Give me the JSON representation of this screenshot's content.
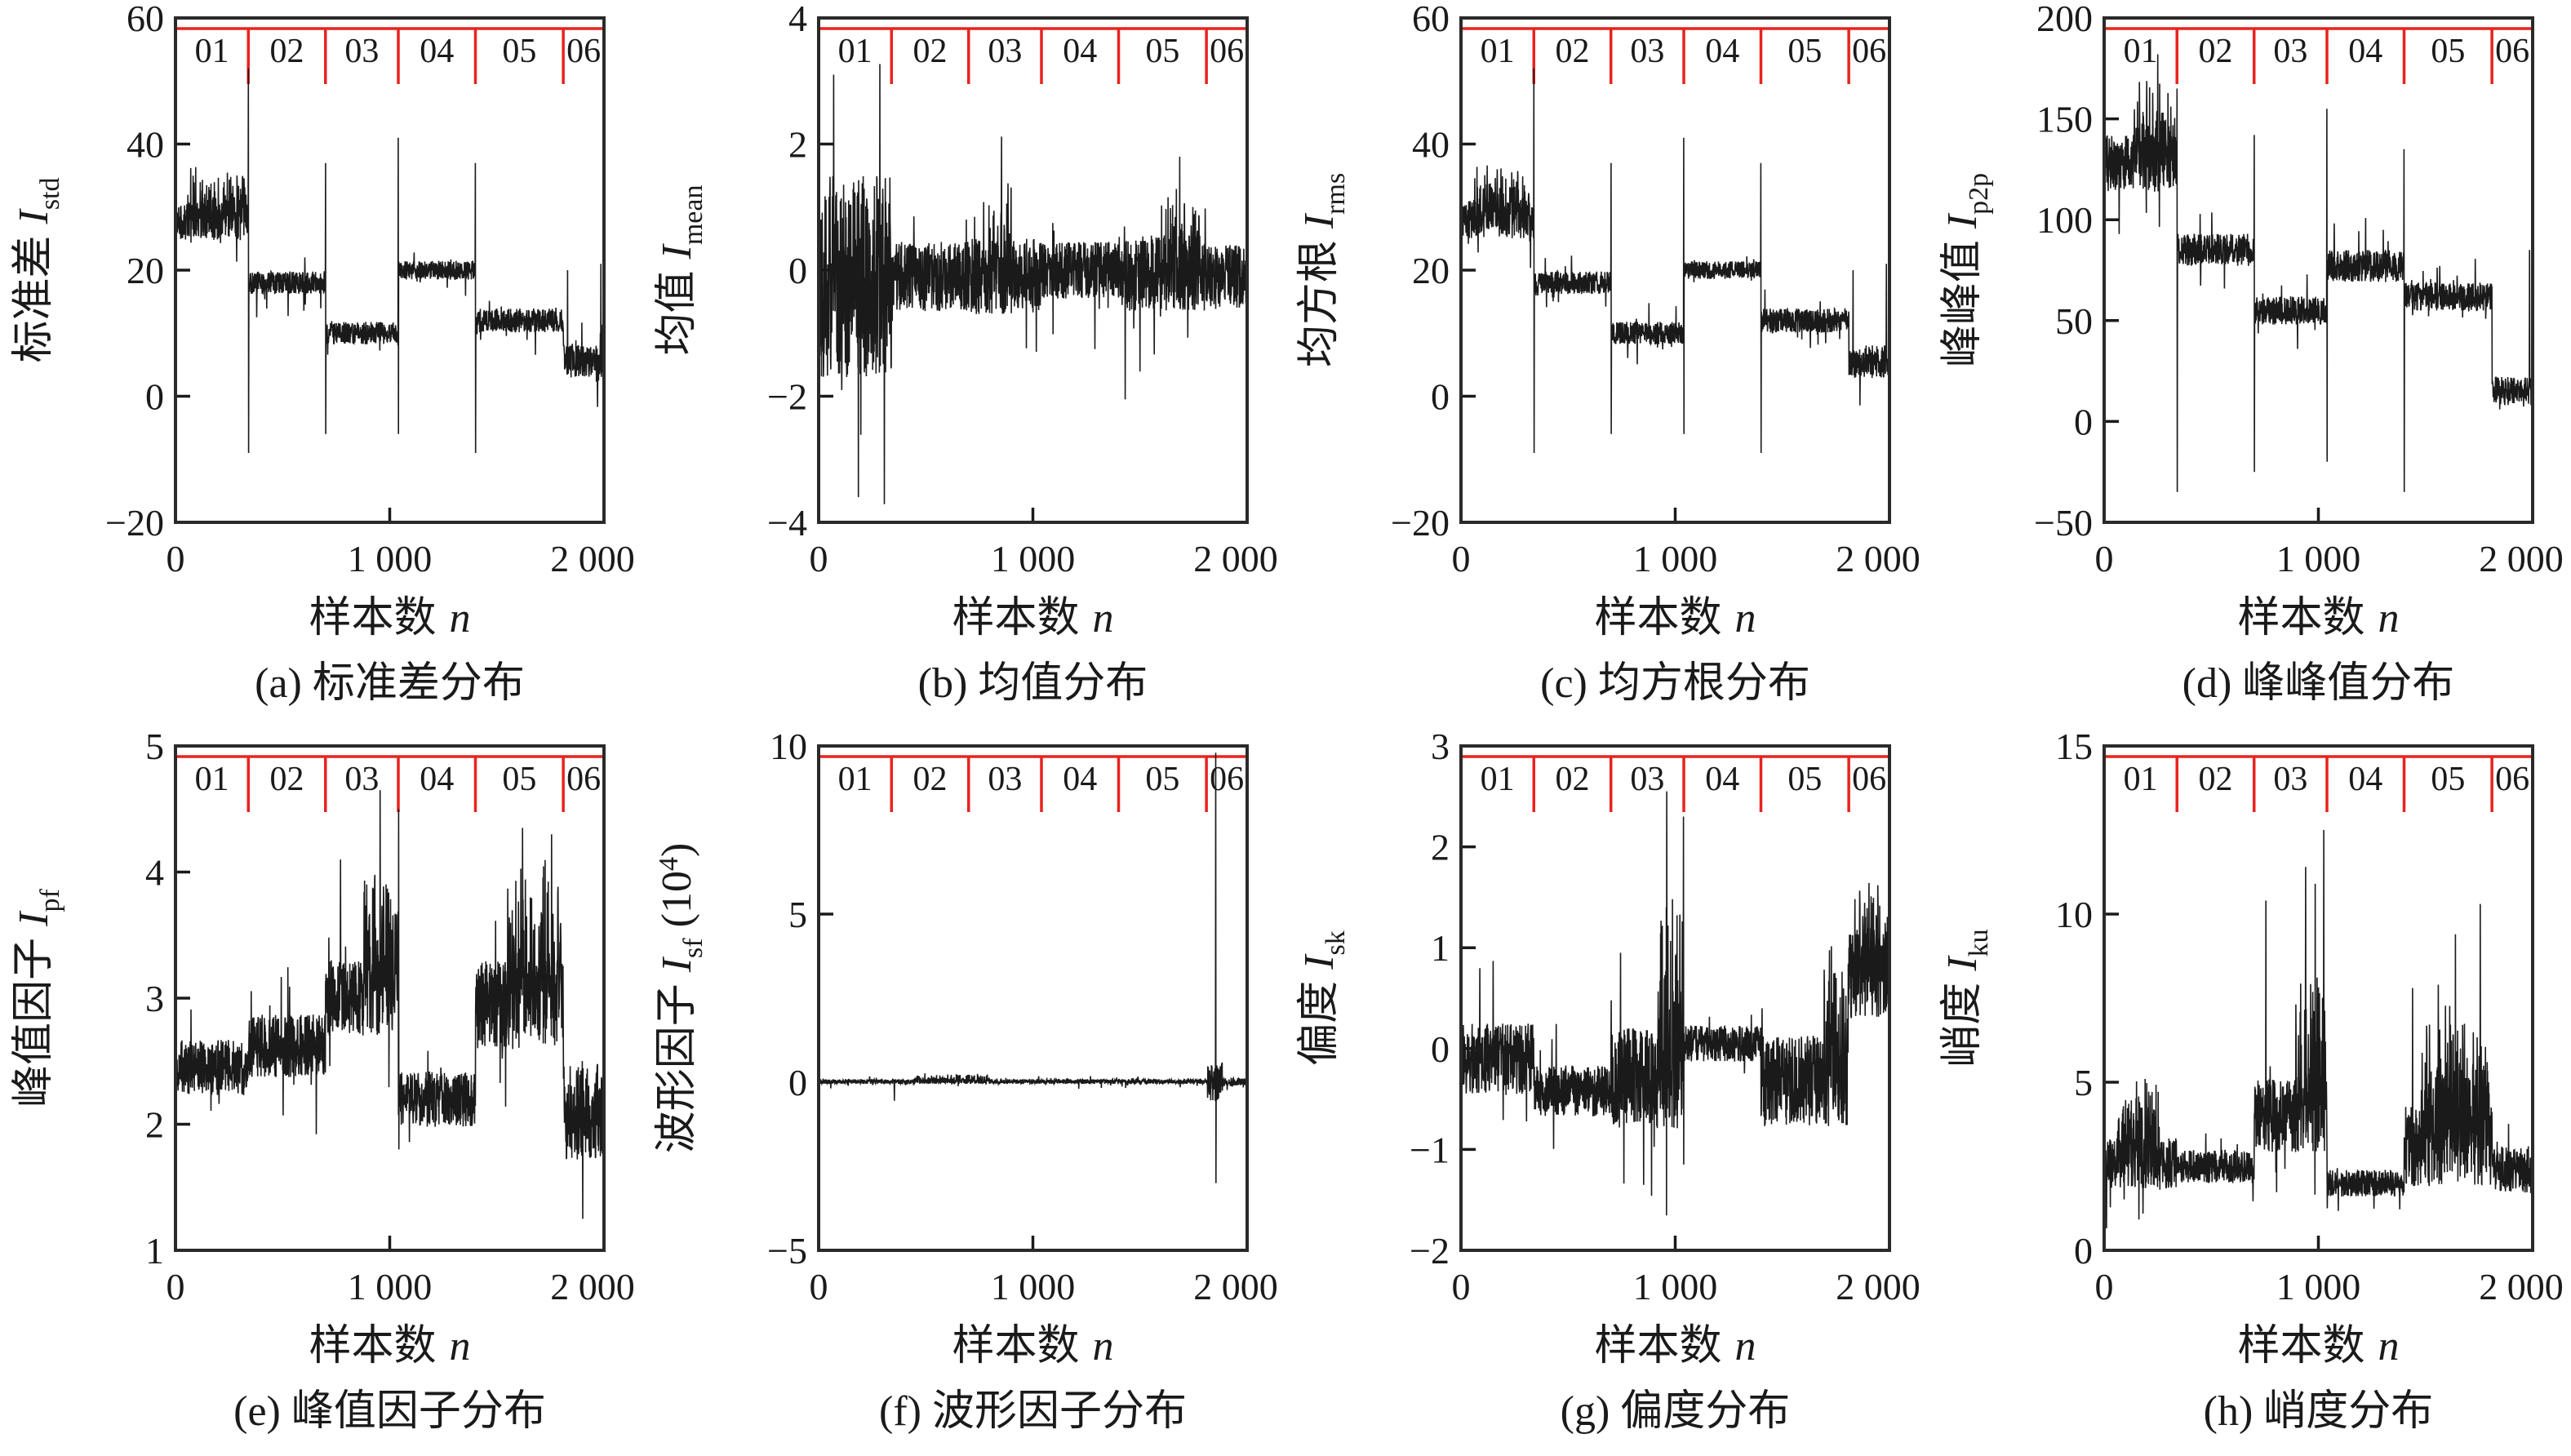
{
  "figure": {
    "x_axis": {
      "label_cn": "样本数",
      "label_sym": "n",
      "ticks": [
        0,
        1000,
        2000
      ],
      "tick_labels": [
        "0",
        "1 000",
        "2 000"
      ],
      "range": [
        0,
        2000
      ]
    },
    "segments": {
      "labels": [
        "01",
        "02",
        "03",
        "04",
        "05",
        "06"
      ],
      "boundaries": [
        340,
        700,
        1040,
        1400,
        1810
      ]
    },
    "colors": {
      "signal": "#1a1a1a",
      "frame": "#2b2a29",
      "segment_marker": "#e8231e",
      "text": "#1a1a1a",
      "background": "#ffffff"
    }
  },
  "chart_data": [
    {
      "type": "line",
      "id": "a",
      "caption": "(a) 标准差分布",
      "ylabel": {
        "cn": "标准差",
        "sym": "I",
        "sub": "std"
      },
      "xlabel": "样本数 n",
      "ylim": [
        -20,
        60
      ],
      "yticks": [
        60,
        40,
        20,
        0,
        -20
      ],
      "ytick_labels": [
        "60",
        "40",
        "20",
        "0",
        "−20"
      ],
      "series": {
        "seed": 11,
        "segments": [
          {
            "x0": 0,
            "x1": 340,
            "base": 28,
            "noise": 3.2
          },
          {
            "x0": 340,
            "x1": 700,
            "base": 18,
            "noise": 1.8
          },
          {
            "x0": 700,
            "x1": 1040,
            "base": 10,
            "noise": 1.8
          },
          {
            "x0": 1040,
            "x1": 1400,
            "base": 20,
            "noise": 1.5
          },
          {
            "x0": 1400,
            "x1": 1810,
            "base": 12,
            "noise": 1.9
          },
          {
            "x0": 1810,
            "x1": 2000,
            "base": 5.5,
            "noise": 2.6
          }
        ],
        "spikes": [
          {
            "x": 340,
            "up": 52,
            "down": -9
          },
          {
            "x": 700,
            "up": 37,
            "down": -6
          },
          {
            "x": 1040,
            "up": 41,
            "down": -6
          },
          {
            "x": 1400,
            "up": 37,
            "down": -9
          },
          {
            "x": 1830,
            "up": 20
          },
          {
            "x": 1985,
            "up": 21
          }
        ],
        "bursts": [
          {
            "x0": 60,
            "x1": 330,
            "amp": 6
          }
        ]
      }
    },
    {
      "type": "line",
      "id": "b",
      "caption": "(b) 均值分布",
      "ylabel": {
        "cn": "均值",
        "sym": "I",
        "sub": "mean"
      },
      "xlabel": "样本数 n",
      "ylim": [
        -4,
        4
      ],
      "yticks": [
        4,
        2,
        0,
        -2,
        -4
      ],
      "ytick_labels": [
        "4",
        "2",
        "0",
        "−2",
        "−4"
      ],
      "series": {
        "seed": 22,
        "segments": [
          {
            "x0": 0,
            "x1": 340,
            "base": -0.1,
            "noise": 1.6
          },
          {
            "x0": 340,
            "x1": 700,
            "base": -0.1,
            "noise": 0.55
          },
          {
            "x0": 700,
            "x1": 1040,
            "base": -0.1,
            "noise": 0.6
          },
          {
            "x0": 1040,
            "x1": 1400,
            "base": 0,
            "noise": 0.45
          },
          {
            "x0": 1400,
            "x1": 1810,
            "base": -0.05,
            "noise": 0.6
          },
          {
            "x0": 1810,
            "x1": 2000,
            "base": -0.1,
            "noise": 0.5
          }
        ],
        "spikes": [
          {
            "x": 70,
            "up": 3.1
          },
          {
            "x": 185,
            "down": -3.6
          },
          {
            "x": 1430,
            "down": -2.05
          },
          {
            "x": 1685,
            "up": 1.8
          }
        ],
        "bursts": [
          {
            "x0": 790,
            "x1": 900,
            "amp": 0.9
          },
          {
            "x0": 1600,
            "x1": 1780,
            "amp": 0.8
          }
        ]
      }
    },
    {
      "type": "line",
      "id": "c",
      "caption": "(c) 均方根分布",
      "ylabel": {
        "cn": "均方根",
        "sym": "I",
        "sub": "rms"
      },
      "xlabel": "样本数 n",
      "ylim": [
        -20,
        60
      ],
      "yticks": [
        60,
        40,
        20,
        0,
        -20
      ],
      "ytick_labels": [
        "60",
        "40",
        "20",
        "0",
        "−20"
      ],
      "series": {
        "seed": 33,
        "segments": [
          {
            "x0": 0,
            "x1": 340,
            "base": 28,
            "noise": 3.0
          },
          {
            "x0": 340,
            "x1": 700,
            "base": 18,
            "noise": 1.8
          },
          {
            "x0": 700,
            "x1": 1040,
            "base": 10,
            "noise": 1.8
          },
          {
            "x0": 1040,
            "x1": 1400,
            "base": 20,
            "noise": 1.4
          },
          {
            "x0": 1400,
            "x1": 1810,
            "base": 12,
            "noise": 1.9
          },
          {
            "x0": 1810,
            "x1": 2000,
            "base": 5.5,
            "noise": 2.6
          }
        ],
        "spikes": [
          {
            "x": 340,
            "up": 52,
            "down": -9
          },
          {
            "x": 700,
            "up": 37,
            "down": -6
          },
          {
            "x": 1040,
            "up": 41,
            "down": -6
          },
          {
            "x": 1400,
            "up": 37,
            "down": -9
          },
          {
            "x": 1830,
            "up": 20
          },
          {
            "x": 1985,
            "up": 21
          }
        ],
        "bursts": [
          {
            "x0": 60,
            "x1": 330,
            "amp": 6
          }
        ]
      }
    },
    {
      "type": "line",
      "id": "d",
      "caption": "(d) 峰峰值分布",
      "ylabel": {
        "cn": "峰峰值",
        "sym": "I",
        "sub": "p2p"
      },
      "xlabel": "样本数 n",
      "ylim": [
        -50,
        200
      ],
      "yticks": [
        200,
        150,
        100,
        50,
        0,
        -50
      ],
      "ytick_labels": [
        "200",
        "150",
        "100",
        "50",
        "0",
        "−50"
      ],
      "series": {
        "seed": 44,
        "segments": [
          {
            "x0": 0,
            "x1": 340,
            "base": 128,
            "noise": 14
          },
          {
            "x0": 340,
            "x1": 700,
            "base": 85,
            "noise": 8
          },
          {
            "x0": 700,
            "x1": 1040,
            "base": 55,
            "noise": 7
          },
          {
            "x0": 1040,
            "x1": 1400,
            "base": 77,
            "noise": 8
          },
          {
            "x0": 1400,
            "x1": 1810,
            "base": 62,
            "noise": 7
          },
          {
            "x0": 1810,
            "x1": 2000,
            "base": 15,
            "noise": 7
          }
        ],
        "spikes": [
          {
            "x": 250,
            "up": 182
          },
          {
            "x": 340,
            "up": 165,
            "down": -35
          },
          {
            "x": 700,
            "up": 142,
            "down": -25
          },
          {
            "x": 1040,
            "up": 155,
            "down": -20
          },
          {
            "x": 1400,
            "up": 135,
            "down": -35
          },
          {
            "x": 1985,
            "up": 85
          }
        ],
        "bursts": [
          {
            "x0": 140,
            "x1": 330,
            "amp": 30
          }
        ]
      }
    },
    {
      "type": "line",
      "id": "e",
      "caption": "(e) 峰值因子分布",
      "ylabel": {
        "cn": "峰值因子",
        "sym": "I",
        "sub": "pf"
      },
      "xlabel": "样本数 n",
      "ylim": [
        1,
        5
      ],
      "yticks": [
        5,
        4,
        3,
        2,
        1
      ],
      "ytick_labels": [
        "5",
        "4",
        "3",
        "2",
        "1"
      ],
      "series": {
        "seed": 55,
        "segments": [
          {
            "x0": 0,
            "x1": 340,
            "base": 2.45,
            "noise": 0.22
          },
          {
            "x0": 340,
            "x1": 700,
            "base": 2.62,
            "noise": 0.25
          },
          {
            "x0": 700,
            "x1": 1040,
            "base": 3.0,
            "noise": 0.3
          },
          {
            "x0": 1040,
            "x1": 1400,
            "base": 2.2,
            "noise": 0.22
          },
          {
            "x0": 1400,
            "x1": 1810,
            "base": 2.95,
            "noise": 0.35
          },
          {
            "x0": 1810,
            "x1": 2000,
            "base": 2.1,
            "noise": 0.38
          }
        ],
        "spikes": [
          {
            "x": 770,
            "up": 4.1
          },
          {
            "x": 955,
            "up": 4.65
          },
          {
            "x": 1042,
            "up": 4.5,
            "down": 1.8
          },
          {
            "x": 1620,
            "up": 4.35
          },
          {
            "x": 1755,
            "up": 4.3
          },
          {
            "x": 1900,
            "down": 1.25
          }
        ],
        "bursts": [
          {
            "x0": 880,
            "x1": 1040,
            "amp": 0.9
          },
          {
            "x0": 1550,
            "x1": 1800,
            "amp": 0.85
          }
        ]
      }
    },
    {
      "type": "line",
      "id": "f",
      "caption": "(f) 波形因子分布",
      "ylabel": {
        "cn": "波形因子",
        "sym": "I",
        "sub": "sf",
        "suffix": {
          "pre": " (10",
          "sup": "4",
          "post": ")"
        }
      },
      "xlabel": "样本数 n",
      "ylim": [
        -5,
        10
      ],
      "yticks": [
        10,
        5,
        0,
        -5
      ],
      "ytick_labels": [
        "10",
        "5",
        "0",
        "−5"
      ],
      "series": {
        "seed": 66,
        "segments": [
          {
            "x0": 0,
            "x1": 1815,
            "base": 0.02,
            "noise": 0.07
          },
          {
            "x0": 1815,
            "x1": 1885,
            "base": 0,
            "noise": 0.6
          },
          {
            "x0": 1885,
            "x1": 2000,
            "base": 0,
            "noise": 0.12
          }
        ],
        "spikes": [
          {
            "x": 1853,
            "up": 9.8,
            "down": -3.0
          },
          {
            "x": 352,
            "down": -0.55
          }
        ],
        "bursts": [
          {
            "x0": 450,
            "x1": 800,
            "amp": 0.18
          }
        ]
      }
    },
    {
      "type": "line",
      "id": "g",
      "caption": "(g) 偏度分布",
      "ylabel": {
        "cn": "偏度",
        "sym": "I",
        "sub": "sk"
      },
      "xlabel": "样本数 n",
      "ylim": [
        -2,
        3
      ],
      "yticks": [
        3,
        2,
        1,
        0,
        -1,
        -2
      ],
      "ytick_labels": [
        "3",
        "2",
        "1",
        "0",
        "−1",
        "−2"
      ],
      "series": {
        "seed": 77,
        "segments": [
          {
            "x0": 0,
            "x1": 340,
            "base": -0.1,
            "noise": 0.35
          },
          {
            "x0": 340,
            "x1": 700,
            "base": -0.42,
            "noise": 0.25
          },
          {
            "x0": 700,
            "x1": 1040,
            "base": -0.3,
            "noise": 0.5
          },
          {
            "x0": 1040,
            "x1": 1400,
            "base": 0.05,
            "noise": 0.18
          },
          {
            "x0": 1400,
            "x1": 1810,
            "base": -0.32,
            "noise": 0.45
          },
          {
            "x0": 1810,
            "x1": 2000,
            "base": 0.75,
            "noise": 0.45
          }
        ],
        "spikes": [
          {
            "x": 745,
            "up": 0.95
          },
          {
            "x": 852,
            "down": -1.35
          },
          {
            "x": 960,
            "up": 2.55
          },
          {
            "x": 1038,
            "up": 2.3,
            "down": -1.15
          },
          {
            "x": 1945,
            "up": 1.62
          }
        ],
        "bursts": [
          {
            "x0": 920,
            "x1": 1040,
            "amp": 1.5
          },
          {
            "x0": 1690,
            "x1": 1810,
            "amp": 1.1
          },
          {
            "x0": 1815,
            "x1": 2000,
            "amp": 0.5
          }
        ]
      }
    },
    {
      "type": "line",
      "id": "h",
      "caption": "(h) 峭度分布",
      "ylabel": {
        "cn": "峭度",
        "sym": "I",
        "sub": "ku"
      },
      "xlabel": "样本数 n",
      "ylim": [
        0,
        15
      ],
      "yticks": [
        15,
        10,
        5,
        0
      ],
      "ytick_labels": [
        "15",
        "10",
        "5",
        "0"
      ],
      "series": {
        "seed": 88,
        "segments": [
          {
            "x0": 0,
            "x1": 340,
            "base": 2.6,
            "noise": 0.75
          },
          {
            "x0": 340,
            "x1": 700,
            "base": 2.5,
            "noise": 0.5
          },
          {
            "x0": 700,
            "x1": 1040,
            "base": 4.0,
            "noise": 1.1
          },
          {
            "x0": 1040,
            "x1": 1400,
            "base": 2.0,
            "noise": 0.4
          },
          {
            "x0": 1400,
            "x1": 1810,
            "base": 3.1,
            "noise": 1.2
          },
          {
            "x0": 1810,
            "x1": 2000,
            "base": 2.4,
            "noise": 0.7
          }
        ],
        "spikes": [
          {
            "x": 755,
            "up": 10.4
          },
          {
            "x": 940,
            "up": 11.4
          },
          {
            "x": 985,
            "up": 10.9
          },
          {
            "x": 1025,
            "up": 12.5
          },
          {
            "x": 1440,
            "up": 7.8
          },
          {
            "x": 1560,
            "up": 7.9
          },
          {
            "x": 1640,
            "up": 9.4
          },
          {
            "x": 1755,
            "up": 10.3
          }
        ],
        "bursts": [
          {
            "x0": 60,
            "x1": 260,
            "amp": 2.0
          },
          {
            "x0": 890,
            "x1": 1040,
            "amp": 3.5
          },
          {
            "x0": 1480,
            "x1": 1800,
            "amp": 3.2
          }
        ]
      }
    }
  ]
}
